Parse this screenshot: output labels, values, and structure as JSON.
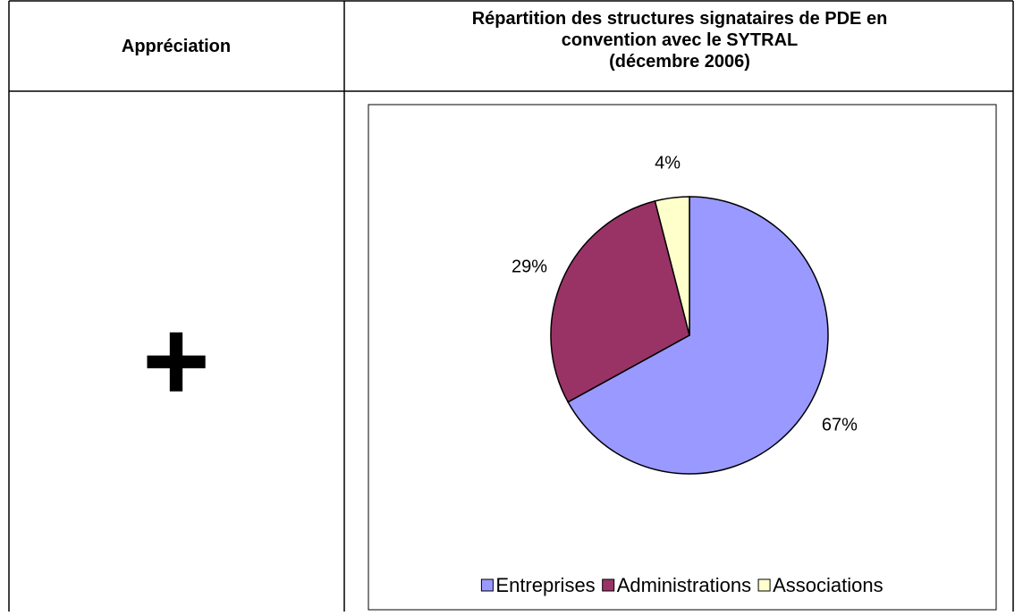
{
  "table": {
    "headers": [
      "Appréciation"
    ],
    "rows": [
      [
        "+"
      ]
    ]
  },
  "chart_header": {
    "title": "Répartition des structures signataires de PDE en convention avec le SYTRAL",
    "subtitle": "(décembre 2006)"
  },
  "chart_data": {
    "type": "pie",
    "categories": [
      "Entreprises",
      "Administrations",
      "Associations"
    ],
    "values": [
      67,
      29,
      4
    ],
    "value_labels": [
      "67%",
      "29%",
      "4%"
    ],
    "colors": [
      "#9999ff",
      "#993366",
      "#ffffcc"
    ],
    "legend": "bottom"
  }
}
